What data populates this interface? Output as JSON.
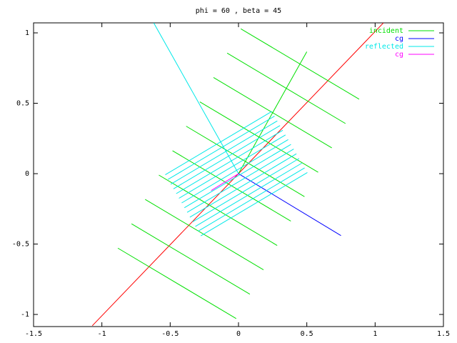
{
  "chart_data": {
    "type": "line",
    "title": "phi = 60 , beta = 45",
    "xlim": [
      -1.5,
      1.5
    ],
    "ylim": [
      -1.086,
      1.071
    ],
    "xticks": [
      -1.5,
      -1,
      -0.5,
      0,
      0.5,
      1,
      1.5
    ],
    "yticks": [
      -1,
      -0.5,
      0,
      0.5,
      1
    ],
    "grid": false,
    "legend": "top-right",
    "series": [
      {
        "color": "#ff0000",
        "x": [
          -1.07,
          1.06
        ],
        "values": [
          -1.08,
          1.07
        ]
      },
      {
        "name": "incident",
        "color": "#00e000",
        "x": [
          0.017,
          0.883,
          null,
          -0.083,
          0.783,
          null,
          -0.183,
          0.683,
          null,
          -0.283,
          0.583,
          null,
          -0.383,
          0.483,
          null,
          -0.483,
          0.383,
          null,
          -0.583,
          0.283,
          null,
          -0.683,
          0.183,
          null,
          -0.783,
          0.083,
          null,
          -0.883,
          -0.017
        ],
        "values": [
          1.029,
          0.529,
          null,
          0.856,
          0.356,
          null,
          0.683,
          0.183,
          null,
          0.51,
          0.01,
          null,
          0.337,
          -0.163,
          null,
          0.163,
          -0.337,
          null,
          -0.01,
          -0.51,
          null,
          -0.183,
          -0.683,
          null,
          -0.356,
          -0.856,
          null,
          -0.529,
          -1.029
        ]
      },
      {
        "color": "#00e000",
        "x": [
          0,
          0.5
        ],
        "values": [
          0,
          0.866
        ]
      },
      {
        "name": "cg",
        "color": "#0000ff",
        "x": [
          0,
          0.75
        ],
        "values": [
          0,
          -0.44
        ]
      },
      {
        "name": "reflected",
        "color": "#00e8e8",
        "x": [
          -0.536,
          0.244,
          null,
          -0.516,
          0.264,
          null,
          -0.496,
          0.284,
          null,
          -0.476,
          0.304,
          null,
          -0.456,
          0.324,
          null,
          -0.436,
          0.344,
          null,
          -0.416,
          0.364,
          null,
          -0.396,
          0.384,
          null,
          -0.376,
          0.404,
          null,
          -0.356,
          0.424,
          null,
          -0.336,
          0.444,
          null,
          -0.316,
          0.464,
          null,
          -0.296,
          0.484,
          null,
          -0.276,
          0.504
        ],
        "values": [
          -0.008,
          0.442,
          null,
          -0.041,
          0.409,
          null,
          -0.075,
          0.375,
          null,
          -0.108,
          0.342,
          null,
          -0.142,
          0.308,
          null,
          -0.175,
          0.275,
          null,
          -0.208,
          0.242,
          null,
          -0.242,
          0.208,
          null,
          -0.275,
          0.175,
          null,
          -0.309,
          0.141,
          null,
          -0.342,
          0.108,
          null,
          -0.375,
          0.075,
          null,
          -0.409,
          0.041,
          null,
          -0.442,
          0.008
        ]
      },
      {
        "color": "#00e8e8",
        "x": [
          -0.62,
          0
        ],
        "values": [
          1.07,
          0
        ]
      },
      {
        "name": "cg",
        "color": "#ff00ff",
        "x": [
          -0.2,
          0
        ],
        "values": [
          -0.12,
          0
        ]
      }
    ]
  }
}
